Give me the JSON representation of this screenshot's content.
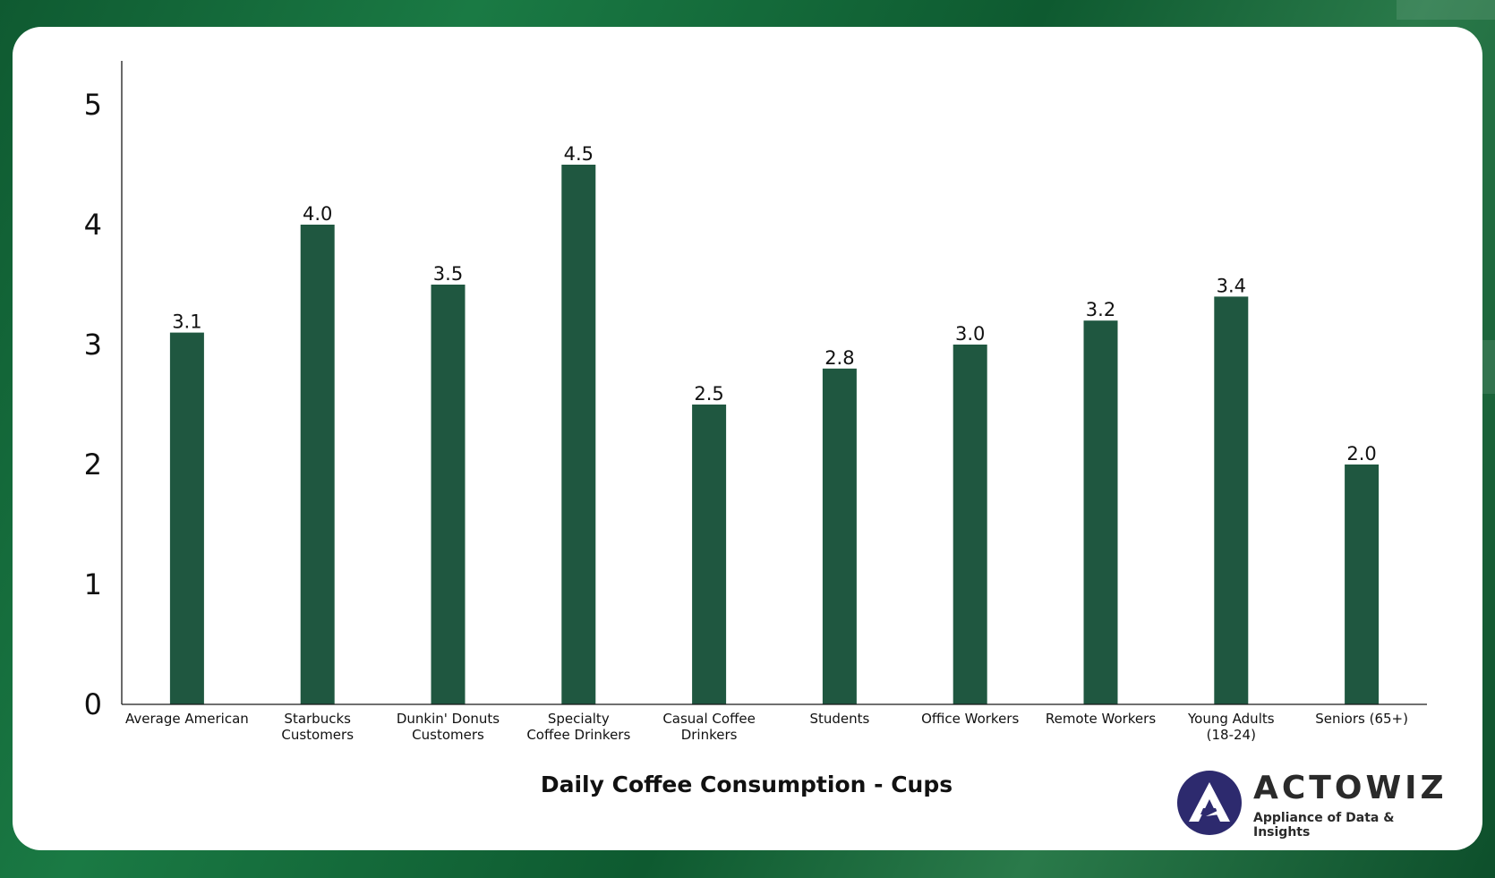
{
  "chart_data": {
    "type": "bar",
    "title": "",
    "xlabel": "Daily Coffee Consumption - Cups",
    "ylabel": "",
    "ylim": [
      0,
      5
    ],
    "yticks": [
      "0",
      "1",
      "2",
      "3",
      "4",
      "5"
    ],
    "grid": false,
    "categories": [
      [
        "Average American"
      ],
      [
        "Starbucks",
        "Customers"
      ],
      [
        "Dunkin' Donuts",
        "Customers"
      ],
      [
        "Specialty",
        "Coffee Drinkers"
      ],
      [
        "Casual Coffee",
        "Drinkers"
      ],
      [
        "Students"
      ],
      [
        "Office Workers"
      ],
      [
        "Remote Workers"
      ],
      [
        "Young Adults",
        "(18-24)"
      ],
      [
        "Seniors (65+)"
      ]
    ],
    "values": [
      3.1,
      4.0,
      3.5,
      4.5,
      2.5,
      2.8,
      3.0,
      3.2,
      3.4,
      2.0
    ],
    "labels": [
      "3.1",
      "4.0",
      "3.5",
      "4.5",
      "2.5",
      "2.8",
      "3.0",
      "3.2",
      "3.4",
      "2.0"
    ],
    "bar_color": "#1f5740"
  },
  "brand": {
    "name": "ACTOWIZ",
    "tagline": "Appliance of Data & Insights",
    "mark_color": "#2d2a6e"
  }
}
